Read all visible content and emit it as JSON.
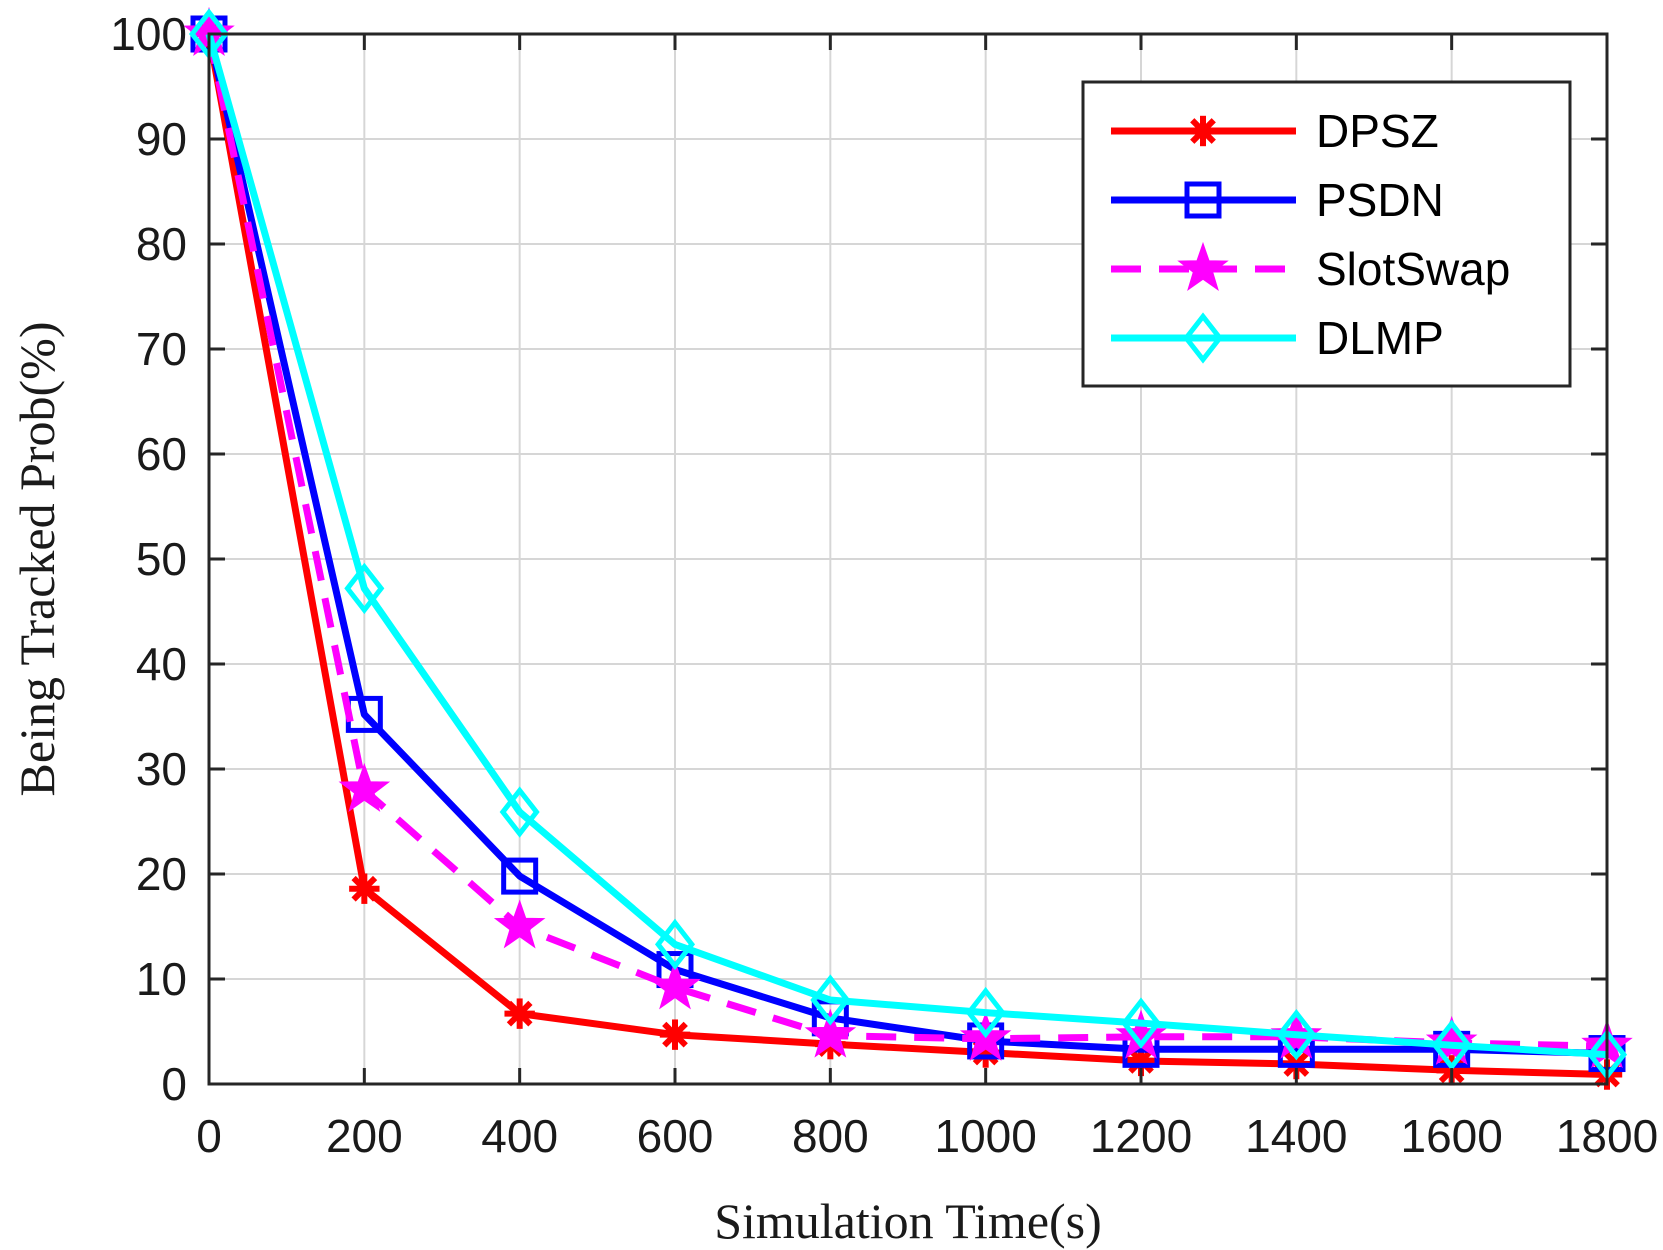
{
  "chart_data": {
    "type": "line",
    "xlabel": "Simulation Time(s)",
    "ylabel": "Being Tracked Prob(%)",
    "xlim": [
      0,
      1800
    ],
    "ylim": [
      0,
      100
    ],
    "xticks": [
      "0",
      "200",
      "400",
      "600",
      "800",
      "1000",
      "1200",
      "1400",
      "1600",
      "1800"
    ],
    "yticks": [
      "0",
      "10",
      "20",
      "30",
      "40",
      "50",
      "60",
      "70",
      "80",
      "90",
      "100"
    ],
    "grid": true,
    "legend_position": "top-right",
    "x": [
      0,
      200,
      400,
      600,
      800,
      1000,
      1200,
      1400,
      1600,
      1800
    ],
    "series": [
      {
        "name": "DPSZ",
        "color": "#ff0000",
        "marker": "asterisk",
        "dash": "solid",
        "values": [
          100,
          18.6,
          6.7,
          4.7,
          3.8,
          3.0,
          2.2,
          1.9,
          1.3,
          0.9
        ]
      },
      {
        "name": "PSDN",
        "color": "#0000ff",
        "marker": "square",
        "dash": "solid",
        "values": [
          100,
          35.2,
          19.8,
          10.9,
          6.3,
          4.1,
          3.3,
          3.3,
          3.3,
          2.9
        ]
      },
      {
        "name": "SlotSwap",
        "color": "#ff00ff",
        "marker": "star",
        "dash": "dashed",
        "values": [
          100,
          28.0,
          15.0,
          9.2,
          4.6,
          4.3,
          4.5,
          4.5,
          3.9,
          3.6
        ]
      },
      {
        "name": "DLMP",
        "color": "#00ffff",
        "marker": "diamond",
        "dash": "solid",
        "values": [
          100,
          47.2,
          25.9,
          13.3,
          8.0,
          6.8,
          5.8,
          4.7,
          3.7,
          2.8
        ]
      }
    ]
  }
}
